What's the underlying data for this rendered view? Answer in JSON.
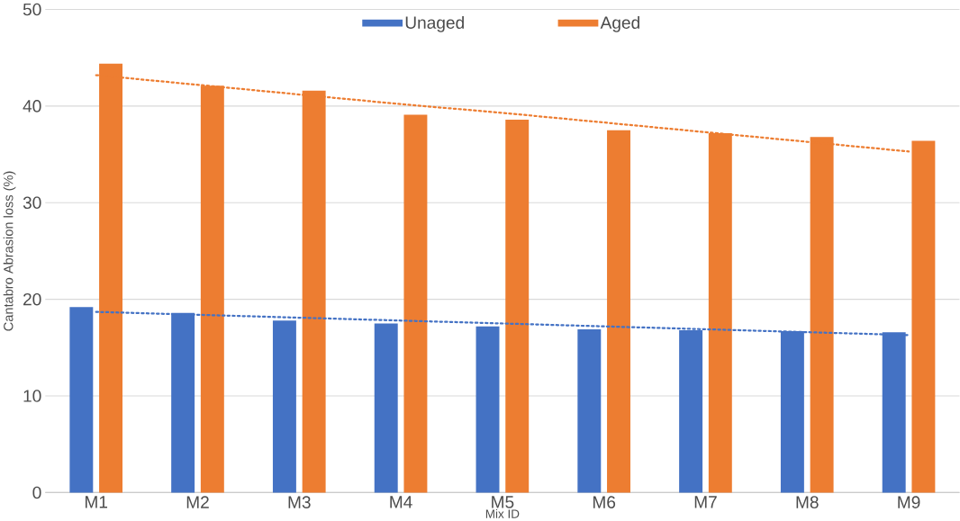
{
  "chart_data": {
    "type": "bar",
    "xlabel": "Mix ID",
    "ylabel": "Cantabro Abrasion loss (%)",
    "categories": [
      "M1",
      "M2",
      "M3",
      "M4",
      "M5",
      "M6",
      "M7",
      "M8",
      "M9"
    ],
    "series": [
      {
        "name": "Unaged",
        "color": "#4472c4",
        "values": [
          19.2,
          18.6,
          17.8,
          17.5,
          17.2,
          16.9,
          16.8,
          16.7,
          16.6
        ]
      },
      {
        "name": "Aged",
        "color": "#ed7d31",
        "values": [
          44.4,
          42.1,
          41.6,
          39.1,
          38.6,
          37.5,
          37.2,
          36.8,
          36.4
        ]
      },
      {
        "type": "line",
        "line_style": "dotted",
        "color": "#4472c4",
        "values": [
          18.7,
          18.4,
          18.1,
          17.8,
          17.5,
          17.2,
          16.9,
          16.6,
          16.3
        ]
      },
      {
        "type": "line",
        "line_style": "dotted",
        "color": "#ed7d31",
        "values": [
          43.2,
          42.2,
          41.2,
          40.2,
          39.3,
          38.3,
          37.3,
          36.3,
          35.3
        ]
      }
    ],
    "ylim": [
      0,
      50
    ],
    "yticks": [
      0,
      10,
      20,
      30,
      40,
      50
    ],
    "grid": "y",
    "legend": "top"
  }
}
